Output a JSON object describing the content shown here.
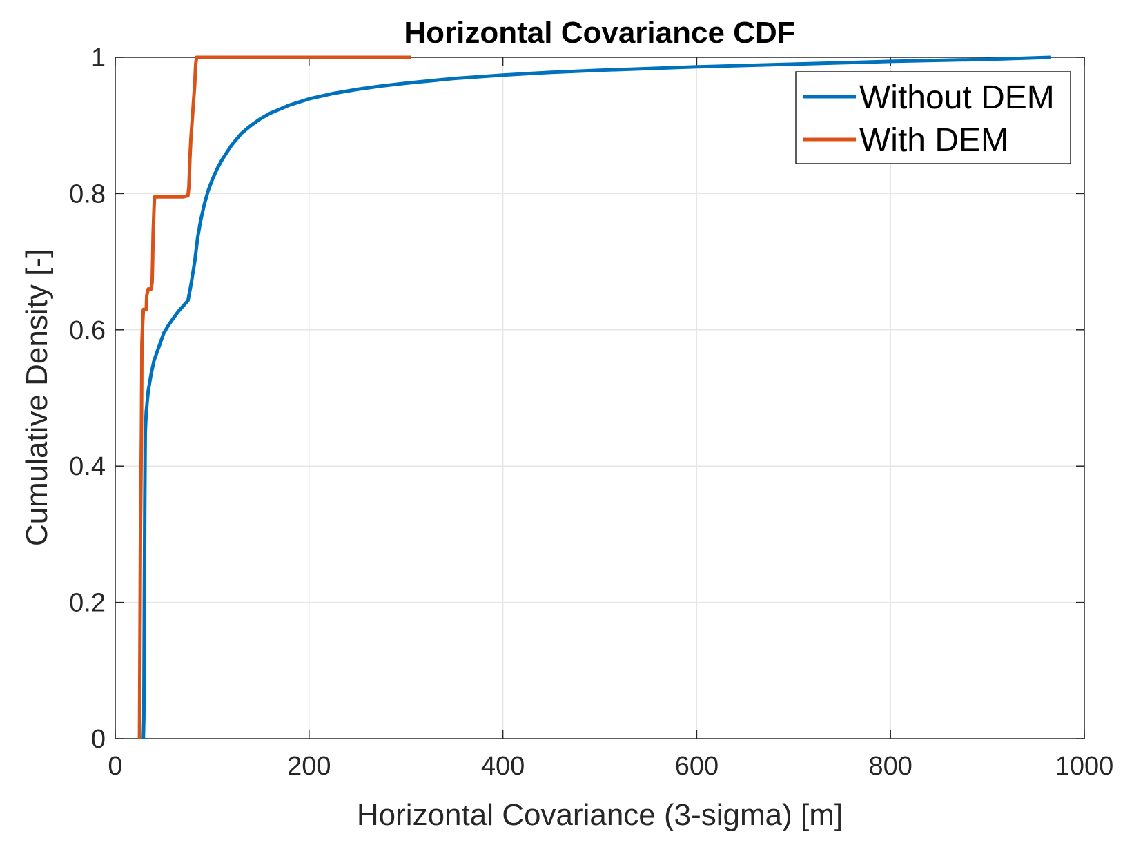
{
  "chart_data": {
    "type": "line",
    "title": "Horizontal Covariance CDF",
    "xlabel": "Horizontal Covariance (3-sigma) [m]",
    "ylabel": "Cumulative Density [-]",
    "xlim": [
      0,
      1000
    ],
    "ylim": [
      0,
      1
    ],
    "xticks": [
      0,
      200,
      400,
      600,
      800,
      1000
    ],
    "xtick_labels": [
      "0",
      "200",
      "400",
      "600",
      "800",
      "1000"
    ],
    "yticks": [
      0,
      0.2,
      0.4,
      0.6,
      0.8,
      1
    ],
    "ytick_labels": [
      "0",
      "0.2",
      "0.4",
      "0.6",
      "0.8",
      "1"
    ],
    "grid": true,
    "legend_position": "top-right",
    "series": [
      {
        "name": "Without DEM",
        "color": "#0072BD",
        "x": [
          29,
          29.5,
          30,
          30.5,
          31,
          32,
          34,
          37,
          40,
          45,
          50,
          55,
          60,
          65,
          70,
          75,
          78,
          82,
          85,
          88,
          92,
          96,
          100,
          105,
          110,
          120,
          130,
          140,
          150,
          160,
          170,
          180,
          200,
          225,
          250,
          275,
          300,
          350,
          400,
          450,
          500,
          600,
          700,
          800,
          900,
          965
        ],
        "y": [
          0,
          0.03,
          0.2,
          0.35,
          0.45,
          0.48,
          0.51,
          0.535,
          0.555,
          0.575,
          0.595,
          0.607,
          0.617,
          0.627,
          0.635,
          0.643,
          0.665,
          0.7,
          0.735,
          0.76,
          0.785,
          0.805,
          0.82,
          0.836,
          0.849,
          0.871,
          0.888,
          0.9,
          0.91,
          0.918,
          0.924,
          0.93,
          0.939,
          0.947,
          0.953,
          0.958,
          0.962,
          0.969,
          0.974,
          0.978,
          0.981,
          0.986,
          0.99,
          0.994,
          0.997,
          1.0
        ]
      },
      {
        "name": "With DEM",
        "color": "#D95319",
        "x": [
          25,
          25.5,
          26,
          27,
          27.5,
          28,
          29,
          30,
          32,
          32.5,
          34,
          35,
          36,
          37,
          38,
          38.5,
          39,
          40,
          40.5,
          41,
          41.5,
          42,
          43,
          45,
          50,
          60,
          70,
          75,
          76,
          77,
          78,
          80,
          82,
          83,
          84,
          85,
          100,
          150,
          200,
          250,
          305
        ],
        "y": [
          0,
          0.15,
          0.3,
          0.45,
          0.58,
          0.6,
          0.63,
          0.63,
          0.63,
          0.65,
          0.66,
          0.66,
          0.66,
          0.66,
          0.67,
          0.7,
          0.74,
          0.78,
          0.795,
          0.795,
          0.795,
          0.795,
          0.795,
          0.795,
          0.795,
          0.795,
          0.795,
          0.797,
          0.81,
          0.85,
          0.88,
          0.92,
          0.96,
          0.99,
          1.0,
          1.0,
          1.0,
          1.0,
          1.0,
          1.0,
          1.0
        ]
      }
    ]
  }
}
